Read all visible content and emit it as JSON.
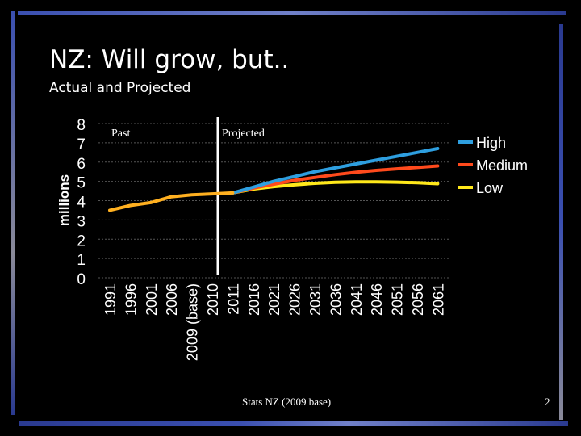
{
  "slide": {
    "title": "NZ: Will grow, but..",
    "subtitle": "Actual and Projected",
    "source": "Stats NZ (2009 base)",
    "page_number": "2"
  },
  "colors": {
    "frame_blue": "#3a4fb0",
    "frame_grey": "#8a8a99",
    "high": "#2e9fe0",
    "medium": "#ff4a1c",
    "low": "#ffe81a",
    "past": "#ffb020"
  },
  "chart_data": {
    "type": "line",
    "ylabel": "millions",
    "xlabel": "",
    "ylim": [
      0,
      8
    ],
    "y_ticks": [
      "0",
      "1",
      "2",
      "3",
      "4",
      "5",
      "6",
      "7",
      "8"
    ],
    "grid": true,
    "legend_position": "right",
    "categories": [
      "1991",
      "1996",
      "2001",
      "2006",
      "2009 (base)",
      "2010",
      "2011",
      "2016",
      "2021",
      "2026",
      "2031",
      "2036",
      "2041",
      "2046",
      "2051",
      "2056",
      "2061"
    ],
    "annotations": {
      "past_label": "Past",
      "projected_label": "Projected",
      "divider_at": "2010"
    },
    "past_series": {
      "values": [
        3.5,
        3.75,
        3.9,
        4.2,
        4.3,
        4.35,
        4.4
      ]
    },
    "series": [
      {
        "name": "High",
        "values": [
          null,
          null,
          null,
          null,
          null,
          null,
          4.4,
          4.7,
          5.0,
          5.25,
          5.5,
          5.7,
          5.9,
          6.1,
          6.3,
          6.5,
          6.7
        ]
      },
      {
        "name": "Medium",
        "values": [
          null,
          null,
          null,
          null,
          null,
          null,
          4.4,
          4.65,
          4.85,
          5.05,
          5.2,
          5.35,
          5.47,
          5.57,
          5.65,
          5.72,
          5.8
        ]
      },
      {
        "name": "Low",
        "values": [
          null,
          null,
          null,
          null,
          null,
          null,
          4.4,
          4.6,
          4.73,
          4.82,
          4.9,
          4.95,
          4.97,
          4.97,
          4.96,
          4.93,
          4.88
        ]
      }
    ]
  }
}
